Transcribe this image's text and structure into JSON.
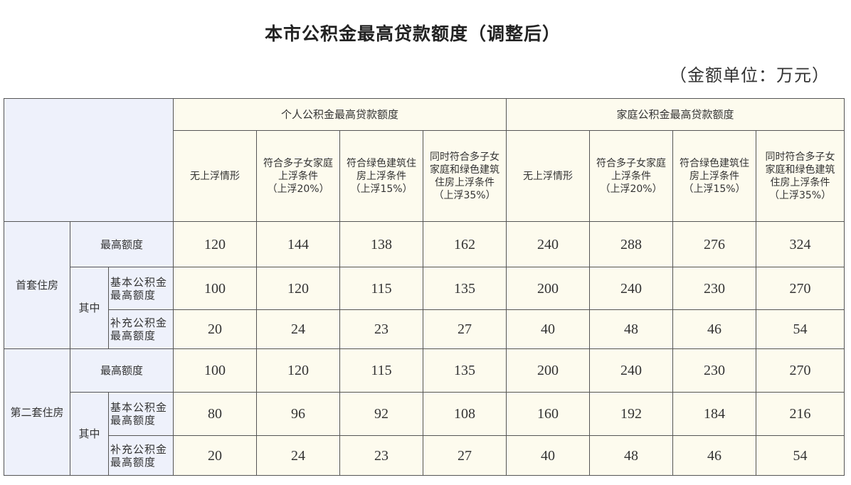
{
  "title": "本市公积金最高贷款额度（调整后）",
  "unit": "（金额单位：万元）",
  "colors": {
    "label_bg": "#eef1fb",
    "data_bg": "#fdfbee",
    "border": "#555555"
  },
  "groups": [
    "个人公积金最高贷款额度",
    "家庭公积金最高贷款额度"
  ],
  "columns": [
    [
      "无上浮情形"
    ],
    [
      "符合多子女家庭",
      "上浮条件",
      "（上浮20%）"
    ],
    [
      "符合绿色建筑住",
      "房上浮条件",
      "（上浮15%）"
    ],
    [
      "同时符合多子女",
      "家庭和绿色建筑",
      "住房上浮条件",
      "（上浮35%）"
    ],
    [
      "无上浮情形"
    ],
    [
      "符合多子女家庭",
      "上浮条件",
      "（上浮20%）"
    ],
    [
      "符合绿色建筑住",
      "房上浮条件",
      "（上浮15%）"
    ],
    [
      "同时符合多子女",
      "家庭和绿色建筑",
      "住房上浮条件",
      "（上浮35%）"
    ]
  ],
  "sections": [
    {
      "label": "首套住房",
      "max_label": "最高额度",
      "of_which": "其中",
      "max_values": [
        "120",
        "144",
        "138",
        "162",
        "240",
        "288",
        "276",
        "324"
      ],
      "sub_rows": [
        {
          "label": [
            "基本公积金",
            "最高额度"
          ],
          "values": [
            "100",
            "120",
            "115",
            "135",
            "200",
            "240",
            "230",
            "270"
          ]
        },
        {
          "label": [
            "补充公积金",
            "最高额度"
          ],
          "values": [
            "20",
            "24",
            "23",
            "27",
            "40",
            "48",
            "46",
            "54"
          ]
        }
      ]
    },
    {
      "label": "第二套住房",
      "max_label": "最高额度",
      "of_which": "其中",
      "max_values": [
        "100",
        "120",
        "115",
        "135",
        "200",
        "240",
        "230",
        "270"
      ],
      "sub_rows": [
        {
          "label": [
            "基本公积金",
            "最高额度"
          ],
          "values": [
            "80",
            "96",
            "92",
            "108",
            "160",
            "192",
            "184",
            "216"
          ]
        },
        {
          "label": [
            "补充公积金",
            "最高额度"
          ],
          "values": [
            "20",
            "24",
            "23",
            "27",
            "40",
            "48",
            "46",
            "54"
          ]
        }
      ]
    }
  ]
}
